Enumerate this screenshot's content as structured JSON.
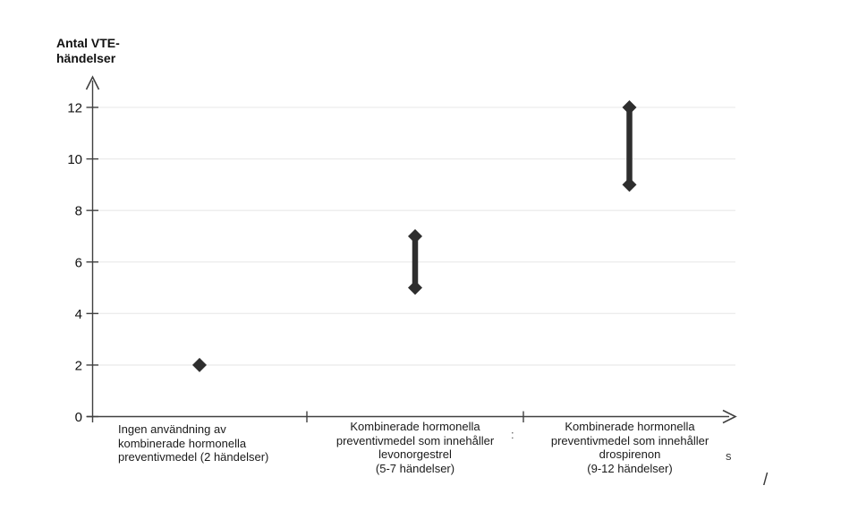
{
  "y_axis_title": {
    "line1": "Antal VTE-",
    "line2": "händelser"
  },
  "colors": {
    "axis": "#404040",
    "grid": "#ececec",
    "marker": "#2e2e2e",
    "tick_text": "#111111"
  },
  "chart_data": {
    "type": "scatter",
    "title": "",
    "ylabel": "Antal VTE-händelser",
    "xlabel": "",
    "ylim": [
      0,
      12
    ],
    "yticks": [
      0,
      2,
      4,
      6,
      8,
      10,
      12
    ],
    "grid": true,
    "legend": "none",
    "marker_shape": "diamond",
    "categories": [
      {
        "line1": "Ingen användning av",
        "line2": "kombinerade hormonella",
        "line3": "preventivmedel (2 händelser)",
        "full": "Ingen användning av kombinerade hormonella preventivmedel (2 händelser)"
      },
      {
        "line1": "Kombinerade hormonella",
        "line2": "preventivmedel som innehåller",
        "line3": "levonorgestrel",
        "line4": "(5-7 händelser)",
        "full": "Kombinerade hormonella preventivmedel som innehåller levonorgestrel (5-7 händelser)"
      },
      {
        "line1": "Kombinerade hormonella",
        "line2": "preventivmedel som innehåller",
        "line3": "drospirenon",
        "line4": "(9-12 händelser)",
        "full": "Kombinerade hormonella preventivmedel som innehåller drospirenon (9-12 händelser)"
      }
    ],
    "series": [
      {
        "name": "Antal VTE-händelser",
        "values": [
          {
            "low": 2,
            "high": 2
          },
          {
            "low": 5,
            "high": 7
          },
          {
            "low": 9,
            "high": 12
          }
        ]
      }
    ]
  },
  "stray_marks": {
    "colon": ":",
    "letter_s": "s",
    "slash": "/"
  }
}
